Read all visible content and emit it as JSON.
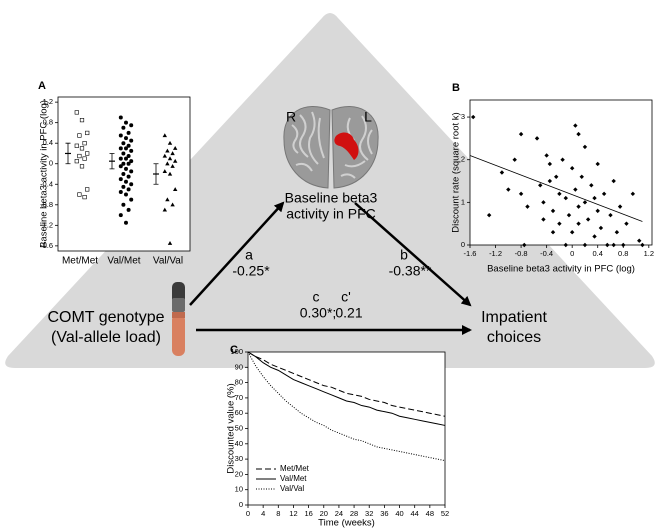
{
  "diagram": {
    "brain_left": "R",
    "brain_right": "L",
    "mediator": [
      "Baseline beta3",
      "activity in PFC"
    ],
    "path_a": {
      "label": "a",
      "value": "-0.25*"
    },
    "path_b": {
      "label": "b",
      "value": "-0.38**"
    },
    "path_c": {
      "label": "c",
      "value": "0.30*;"
    },
    "path_c_prime": {
      "label": "c'",
      "value": "0.21"
    },
    "source": [
      "COMT genotype",
      "(Val-allele load)"
    ],
    "outcome": [
      "Impatient",
      "choices"
    ]
  },
  "chart_data": [
    {
      "type": "strip",
      "label": "A",
      "ylabel": "Baseline beta3 activity in PFC (log)",
      "categories": [
        "Met/Met",
        "Val/Met",
        "Val/Val"
      ],
      "markers": [
        "square",
        "circle",
        "triangle"
      ],
      "points": [
        [
          1.0,
          0.85,
          0.6,
          0.55,
          0.4,
          0.35,
          0.3,
          0.2,
          0.15,
          0.1,
          0.05,
          -0.05,
          -0.5,
          -0.6,
          -0.65
        ],
        [
          0.9,
          0.8,
          0.75,
          0.7,
          0.6,
          0.55,
          0.5,
          0.45,
          0.4,
          0.35,
          0.3,
          0.3,
          0.25,
          0.2,
          0.15,
          0.1,
          0.1,
          0.05,
          0,
          0,
          -0.05,
          -0.1,
          -0.15,
          -0.2,
          -0.25,
          -0.3,
          -0.35,
          -0.4,
          -0.45,
          -0.5,
          -0.55,
          -0.6,
          -0.7,
          -0.8,
          -0.9,
          -1.0,
          -1.15
        ],
        [
          0.55,
          0.4,
          0.3,
          0.25,
          0.2,
          0.15,
          0.1,
          0.05,
          0,
          -0.05,
          -0.15,
          -0.2,
          -0.5,
          -0.7,
          -0.8,
          -0.9,
          -1.55
        ]
      ],
      "means": [
        0.2,
        0.05,
        -0.2
      ],
      "errors": [
        0.2,
        0.15,
        0.2
      ],
      "color": "#000000",
      "ylim": [
        -1.7,
        1.3
      ],
      "yticks": [
        -1.6,
        -1.2,
        -0.8,
        -0.4,
        0,
        0.4,
        0.8,
        1.2
      ]
    },
    {
      "type": "scatter",
      "label": "B",
      "ylabel": "Discount rate (square root k)",
      "xlabel": "Baseline beta3 activity in PFC (log)",
      "x": [
        -1.55,
        -1.3,
        -1.1,
        -1,
        -0.9,
        -0.8,
        -0.8,
        -0.75,
        -0.7,
        -0.55,
        -0.5,
        -0.45,
        -0.45,
        -0.4,
        -0.35,
        -0.35,
        -0.3,
        -0.3,
        -0.25,
        -0.2,
        -0.2,
        -0.15,
        -0.1,
        -0.1,
        -0.05,
        0,
        0,
        0.05,
        0.05,
        0.1,
        0.1,
        0.1,
        0.15,
        0.2,
        0.2,
        0.2,
        0.25,
        0.3,
        0.35,
        0.35,
        0.4,
        0.4,
        0.45,
        0.5,
        0.55,
        0.6,
        0.65,
        0.65,
        0.7,
        0.75,
        0.8,
        0.85,
        0.95,
        1.05,
        1.1
      ],
      "values": [
        3.0,
        0.7,
        1.7,
        1.3,
        2.0,
        2.6,
        1.2,
        0,
        0.9,
        2.5,
        1.4,
        1.0,
        0.6,
        2.1,
        1.9,
        1.5,
        0.3,
        0.8,
        1.6,
        1.2,
        0.5,
        2.0,
        0,
        1.1,
        0.7,
        1.8,
        0.3,
        2.8,
        1.3,
        2.6,
        0.9,
        0.5,
        1.6,
        2.3,
        1.0,
        0,
        0.6,
        1.4,
        1.1,
        0.2,
        1.9,
        0.8,
        0.4,
        1.2,
        0,
        0.7,
        1.5,
        0,
        0.3,
        0.9,
        0,
        0.5,
        1.2,
        0.1,
        0
      ],
      "fit": {
        "x": [
          -1.6,
          1.1
        ],
        "y": [
          2.1,
          0.55
        ]
      },
      "color": "#000000",
      "xlim": [
        -1.6,
        1.25
      ],
      "xticks": [
        -1.6,
        -1.2,
        -0.8,
        -0.4,
        0,
        0.4,
        0.8,
        1.2
      ],
      "ylim": [
        0,
        3.4
      ],
      "yticks": [
        0,
        1,
        2,
        3
      ]
    },
    {
      "type": "line",
      "label": "C",
      "ylabel": "Discounted value (%)",
      "xlabel": "Time (weeks)",
      "x": [
        0,
        2,
        4,
        6,
        8,
        10,
        12,
        14,
        16,
        18,
        20,
        22,
        24,
        26,
        28,
        30,
        32,
        34,
        36,
        38,
        40,
        42,
        44,
        46,
        48,
        50,
        52
      ],
      "series": [
        {
          "name": "Met/Met",
          "color": "#000000",
          "style": "dashed",
          "values": [
            100,
            97,
            95,
            92,
            90,
            88,
            86,
            84,
            82,
            80,
            78,
            77,
            75,
            73,
            72,
            71,
            69,
            68,
            67,
            65,
            64,
            63,
            62,
            61,
            60,
            59,
            58
          ]
        },
        {
          "name": "Val/Met",
          "color": "#000000",
          "style": "solid",
          "values": [
            100,
            97,
            93,
            90,
            88,
            85,
            82,
            80,
            78,
            76,
            74,
            72,
            70,
            68,
            67,
            65,
            64,
            62,
            61,
            60,
            58,
            57,
            56,
            55,
            54,
            53,
            52
          ]
        },
        {
          "name": "Val/Val",
          "color": "#000000",
          "style": "dotted",
          "values": [
            100,
            91,
            84,
            78,
            73,
            68,
            64,
            60,
            57,
            54,
            52,
            49,
            47,
            45,
            43,
            42,
            40,
            38,
            37,
            36,
            35,
            34,
            33,
            32,
            31,
            30,
            29
          ]
        }
      ],
      "legend": "lower left",
      "xlim": [
        0,
        52
      ],
      "xticks": [
        0,
        4,
        8,
        12,
        16,
        20,
        24,
        28,
        32,
        36,
        40,
        44,
        48,
        52
      ],
      "ylim": [
        0,
        100
      ],
      "yticks": [
        0,
        10,
        20,
        30,
        40,
        50,
        60,
        70,
        80,
        90,
        100
      ]
    }
  ]
}
